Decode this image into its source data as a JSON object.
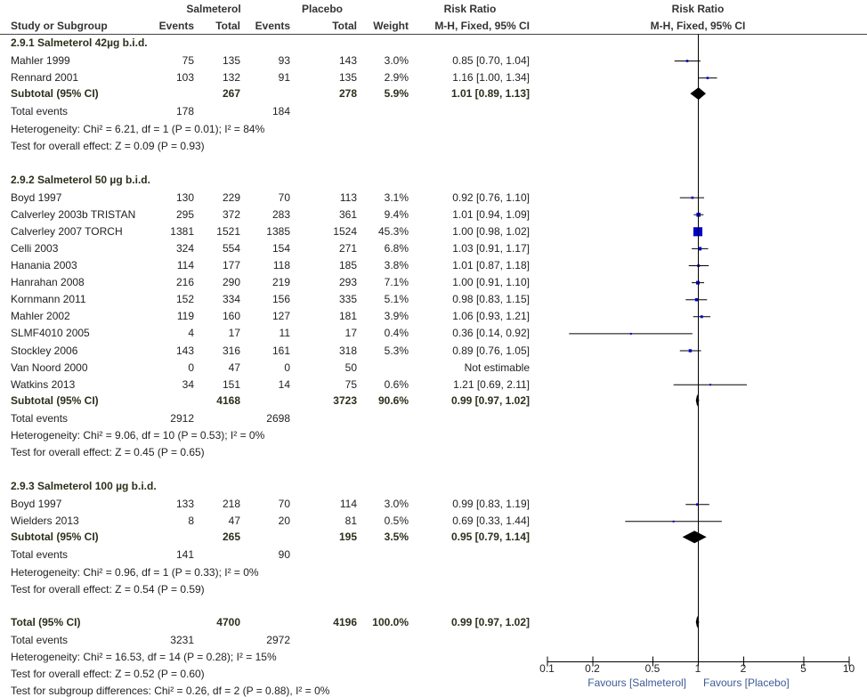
{
  "chart_data": {
    "type": "forest",
    "header": {
      "study_col": "Study or Subgroup",
      "group_exp": "Salmeterol",
      "group_ctl": "Placebo",
      "events": "Events",
      "total": "Total",
      "weight": "Weight",
      "rr_title": "Risk Ratio",
      "rr_method": "M-H, Fixed, 95% CI",
      "plot_title": "Risk Ratio",
      "plot_method": "M-H, Fixed, 95% CI"
    },
    "groups": [
      {
        "title": "2.9.1 Salmeterol 42µg b.i.d.",
        "studies": [
          {
            "name": "Mahler 1999",
            "se": "75",
            "st": "135",
            "pe": "93",
            "pt": "143",
            "weight": "3.0%",
            "ci_text": "0.85 [0.70, 1.04]",
            "rr": 0.85,
            "lo": 0.7,
            "hi": 1.04,
            "w": 3.0
          },
          {
            "name": "Rennard 2001",
            "se": "103",
            "st": "132",
            "pe": "91",
            "pt": "135",
            "weight": "2.9%",
            "ci_text": "1.16 [1.00, 1.34]",
            "rr": 1.16,
            "lo": 1.0,
            "hi": 1.34,
            "w": 2.9
          }
        ],
        "subtotal": {
          "label": "Subtotal (95% CI)",
          "st": "267",
          "pt": "278",
          "weight": "5.9%",
          "ci_text": "1.01 [0.89, 1.13]",
          "rr": 1.01,
          "lo": 0.89,
          "hi": 1.13
        },
        "total_events": {
          "label": "Total events",
          "se": "178",
          "pe": "184"
        },
        "heterogeneity": "Heterogeneity: Chi² = 6.21, df = 1 (P = 0.01); I² = 84%",
        "overall_effect": "Test for overall effect: Z = 0.09 (P = 0.93)"
      },
      {
        "title": "2.9.2 Salmeterol 50 µg b.i.d.",
        "studies": [
          {
            "name": "Boyd 1997",
            "se": "130",
            "st": "229",
            "pe": "70",
            "pt": "113",
            "weight": "3.1%",
            "ci_text": "0.92 [0.76, 1.10]",
            "rr": 0.92,
            "lo": 0.76,
            "hi": 1.1,
            "w": 3.1
          },
          {
            "name": "Calverley 2003b TRISTAN",
            "se": "295",
            "st": "372",
            "pe": "283",
            "pt": "361",
            "weight": "9.4%",
            "ci_text": "1.01 [0.94, 1.09]",
            "rr": 1.01,
            "lo": 0.94,
            "hi": 1.09,
            "w": 9.4
          },
          {
            "name": "Calverley 2007 TORCH",
            "se": "1381",
            "st": "1521",
            "pe": "1385",
            "pt": "1524",
            "weight": "45.3%",
            "ci_text": "1.00 [0.98, 1.02]",
            "rr": 1.0,
            "lo": 0.98,
            "hi": 1.02,
            "w": 45.3
          },
          {
            "name": "Celli 2003",
            "se": "324",
            "st": "554",
            "pe": "154",
            "pt": "271",
            "weight": "6.8%",
            "ci_text": "1.03 [0.91, 1.17]",
            "rr": 1.03,
            "lo": 0.91,
            "hi": 1.17,
            "w": 6.8
          },
          {
            "name": "Hanania 2003",
            "se": "114",
            "st": "177",
            "pe": "118",
            "pt": "185",
            "weight": "3.8%",
            "ci_text": "1.01 [0.87, 1.18]",
            "rr": 1.01,
            "lo": 0.87,
            "hi": 1.18,
            "w": 3.8
          },
          {
            "name": "Hanrahan 2008",
            "se": "216",
            "st": "290",
            "pe": "219",
            "pt": "293",
            "weight": "7.1%",
            "ci_text": "1.00 [0.91, 1.10]",
            "rr": 1.0,
            "lo": 0.91,
            "hi": 1.1,
            "w": 7.1
          },
          {
            "name": "Kornmann 2011",
            "se": "152",
            "st": "334",
            "pe": "156",
            "pt": "335",
            "weight": "5.1%",
            "ci_text": "0.98 [0.83, 1.15]",
            "rr": 0.98,
            "lo": 0.83,
            "hi": 1.15,
            "w": 5.1
          },
          {
            "name": "Mahler 2002",
            "se": "119",
            "st": "160",
            "pe": "127",
            "pt": "181",
            "weight": "3.9%",
            "ci_text": "1.06 [0.93, 1.21]",
            "rr": 1.06,
            "lo": 0.93,
            "hi": 1.21,
            "w": 3.9
          },
          {
            "name": "SLMF4010 2005",
            "se": "4",
            "st": "17",
            "pe": "11",
            "pt": "17",
            "weight": "0.4%",
            "ci_text": "0.36 [0.14, 0.92]",
            "rr": 0.36,
            "lo": 0.14,
            "hi": 0.92,
            "w": 0.4
          },
          {
            "name": "Stockley 2006",
            "se": "143",
            "st": "316",
            "pe": "161",
            "pt": "318",
            "weight": "5.3%",
            "ci_text": "0.89 [0.76, 1.05]",
            "rr": 0.89,
            "lo": 0.76,
            "hi": 1.05,
            "w": 5.3
          },
          {
            "name": "Van Noord 2000",
            "se": "0",
            "st": "47",
            "pe": "0",
            "pt": "50",
            "weight": "",
            "ci_text": "Not estimable",
            "rr": null,
            "lo": null,
            "hi": null,
            "w": 0
          },
          {
            "name": "Watkins 2013",
            "se": "34",
            "st": "151",
            "pe": "14",
            "pt": "75",
            "weight": "0.6%",
            "ci_text": "1.21 [0.69, 2.11]",
            "rr": 1.21,
            "lo": 0.69,
            "hi": 2.11,
            "w": 0.6
          }
        ],
        "subtotal": {
          "label": "Subtotal (95% CI)",
          "st": "4168",
          "pt": "3723",
          "weight": "90.6%",
          "ci_text": "0.99 [0.97, 1.02]",
          "rr": 0.99,
          "lo": 0.97,
          "hi": 1.02
        },
        "total_events": {
          "label": "Total events",
          "se": "2912",
          "pe": "2698"
        },
        "heterogeneity": "Heterogeneity: Chi² = 9.06, df = 10 (P = 0.53); I² = 0%",
        "overall_effect": "Test for overall effect: Z = 0.45 (P = 0.65)"
      },
      {
        "title": "2.9.3 Salmeterol 100 µg b.i.d.",
        "studies": [
          {
            "name": "Boyd 1997",
            "se": "133",
            "st": "218",
            "pe": "70",
            "pt": "114",
            "weight": "3.0%",
            "ci_text": "0.99 [0.83, 1.19]",
            "rr": 0.99,
            "lo": 0.83,
            "hi": 1.19,
            "w": 3.0
          },
          {
            "name": "Wielders 2013",
            "se": "8",
            "st": "47",
            "pe": "20",
            "pt": "81",
            "weight": "0.5%",
            "ci_text": "0.69 [0.33, 1.44]",
            "rr": 0.69,
            "lo": 0.33,
            "hi": 1.44,
            "w": 0.5
          }
        ],
        "subtotal": {
          "label": "Subtotal (95% CI)",
          "st": "265",
          "pt": "195",
          "weight": "3.5%",
          "ci_text": "0.95 [0.79, 1.14]",
          "rr": 0.95,
          "lo": 0.79,
          "hi": 1.14
        },
        "total_events": {
          "label": "Total events",
          "se": "141",
          "pe": "90"
        },
        "heterogeneity": "Heterogeneity: Chi² = 0.96, df = 1 (P = 0.33); I² = 0%",
        "overall_effect": "Test for overall effect: Z = 0.54 (P = 0.59)"
      }
    ],
    "overall": {
      "label": "Total (95% CI)",
      "st": "4700",
      "pt": "4196",
      "weight": "100.0%",
      "ci_text": "0.99 [0.97, 1.02]",
      "rr": 0.99,
      "lo": 0.97,
      "hi": 1.02,
      "total_events": {
        "label": "Total events",
        "se": "3231",
        "pe": "2972"
      },
      "heterogeneity": "Heterogeneity: Chi² = 16.53, df = 14 (P = 0.28); I² = 15%",
      "overall_effect": "Test for overall effect: Z = 0.52 (P = 0.60)",
      "subgroup_diff": "Test for subgroup differences: Chi² = 0.26, df = 2 (P = 0.88), I² = 0%"
    },
    "axis": {
      "scale": "log",
      "range": [
        0.1,
        10
      ],
      "ticks": [
        0.1,
        0.2,
        0.5,
        1,
        2,
        5,
        10
      ],
      "tick_labels": [
        "0.1",
        "0.2",
        "0.5",
        "1",
        "2",
        "5",
        "10"
      ],
      "left_label": "Favours [Salmeterol]",
      "right_label": "Favours [Placebo]"
    },
    "colors": {
      "square": "#0000cc",
      "diamond": "#000000",
      "favours": "#3c5a96"
    }
  }
}
